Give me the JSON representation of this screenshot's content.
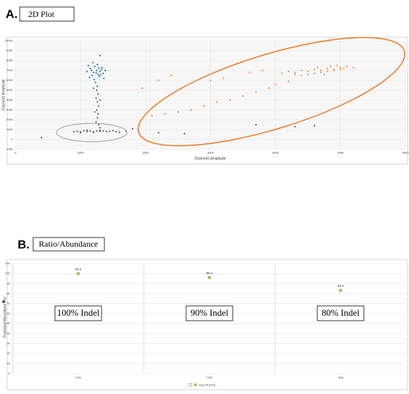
{
  "chart_data": [
    {
      "type": "scatter",
      "panel": "A.",
      "title": "2D Plot",
      "x_label": "Channel2 Amplitude",
      "y_label": "Channel1 Amplitude",
      "xlim": [
        0,
        6000
      ],
      "xticks": [
        0,
        1000,
        2000,
        3000,
        4000,
        5000,
        6000
      ],
      "ylim": [
        -1000,
        10000
      ],
      "yticks": [
        -1000,
        0,
        1000,
        2000,
        3000,
        4000,
        5000,
        6000,
        7000,
        8000,
        9000,
        10000
      ],
      "grid": true,
      "series": [
        {
          "color": "#1f6db0",
          "x": [
            1150,
            1200,
            1250,
            1300,
            1180,
            1220,
            1270,
            1320,
            1350,
            1100,
            1140,
            1260,
            1210,
            1290,
            1330,
            1170,
            1240,
            1280,
            1310,
            1190,
            1230,
            1260,
            1250,
            1270,
            1240,
            1260,
            1280,
            1250,
            1270,
            1260,
            1240,
            1280,
            1300,
            1220,
            1300,
            1200,
            1360,
            1120,
            1380,
            1300
          ],
          "y": [
            7200,
            6800,
            7000,
            6900,
            6500,
            7400,
            6600,
            7100,
            6700,
            6900,
            6300,
            7600,
            6100,
            6400,
            7300,
            7000,
            6750,
            7250,
            6550,
            7800,
            5800,
            5400,
            5000,
            4600,
            4200,
            3800,
            3400,
            3000,
            2600,
            2200,
            1800,
            1500,
            1200,
            2800,
            4000,
            5200,
            6200,
            7500,
            7000,
            8500
          ]
        },
        {
          "color": "#555555",
          "x": [
            900,
            950,
            1000,
            1050,
            1100,
            1150,
            1200,
            1250,
            1300,
            1350,
            1400,
            1450,
            1500,
            1550,
            1000,
            1100,
            1200,
            1300,
            1600,
            1700,
            400,
            1800,
            2200,
            2600,
            3700,
            4300,
            4600
          ],
          "y": [
            800,
            850,
            780,
            900,
            820,
            860,
            800,
            880,
            830,
            870,
            810,
            850,
            900,
            800,
            700,
            950,
            720,
            950,
            750,
            850,
            200,
            1100,
            700,
            600,
            1500,
            1300,
            1400
          ]
        },
        {
          "color": "#f0862e",
          "x": [
            1950,
            2200,
            2400,
            2100,
            2300,
            2500,
            2700,
            2900,
            3100,
            3300,
            3500,
            3700,
            3900,
            4000,
            4200,
            3200,
            3600,
            3800,
            3000,
            4100,
            4200,
            4300,
            4400,
            4500,
            4600,
            4700,
            4800,
            4900,
            5000,
            5100,
            5200,
            4500,
            4600,
            4700,
            4800,
            4900,
            5000,
            4400,
            4300,
            4650,
            4850,
            4950,
            5050,
            4750
          ],
          "y": [
            5200,
            6000,
            6500,
            2400,
            2600,
            2800,
            3000,
            3400,
            3800,
            4000,
            4400,
            4800,
            5200,
            5600,
            5900,
            6200,
            6800,
            7000,
            6000,
            6700,
            6900,
            6800,
            7000,
            6900,
            7100,
            7000,
            7200,
            7100,
            7300,
            7400,
            7300,
            6600,
            6700,
            6800,
            6900,
            7000,
            7100,
            6500,
            6600,
            7300,
            7400,
            7500,
            7200,
            6600
          ]
        }
      ]
    },
    {
      "type": "point",
      "panel": "B.",
      "title": "Ratio/Abundance",
      "y_label": "Fractional Abundance (%)",
      "categories": [
        "G04",
        "G05",
        "G06"
      ],
      "values": [
        99.9,
        96.1,
        83.2
      ],
      "color": "#c9b94c",
      "ylim": [
        0,
        110
      ],
      "yticks": [
        0,
        10,
        20,
        30,
        40,
        50,
        60,
        70,
        80,
        90,
        100,
        110
      ],
      "grid": true,
      "annotations": [
        "100% Indel",
        "90% Indel",
        "80% Indel"
      ],
      "legend": "Snp off (Ch1)"
    }
  ]
}
